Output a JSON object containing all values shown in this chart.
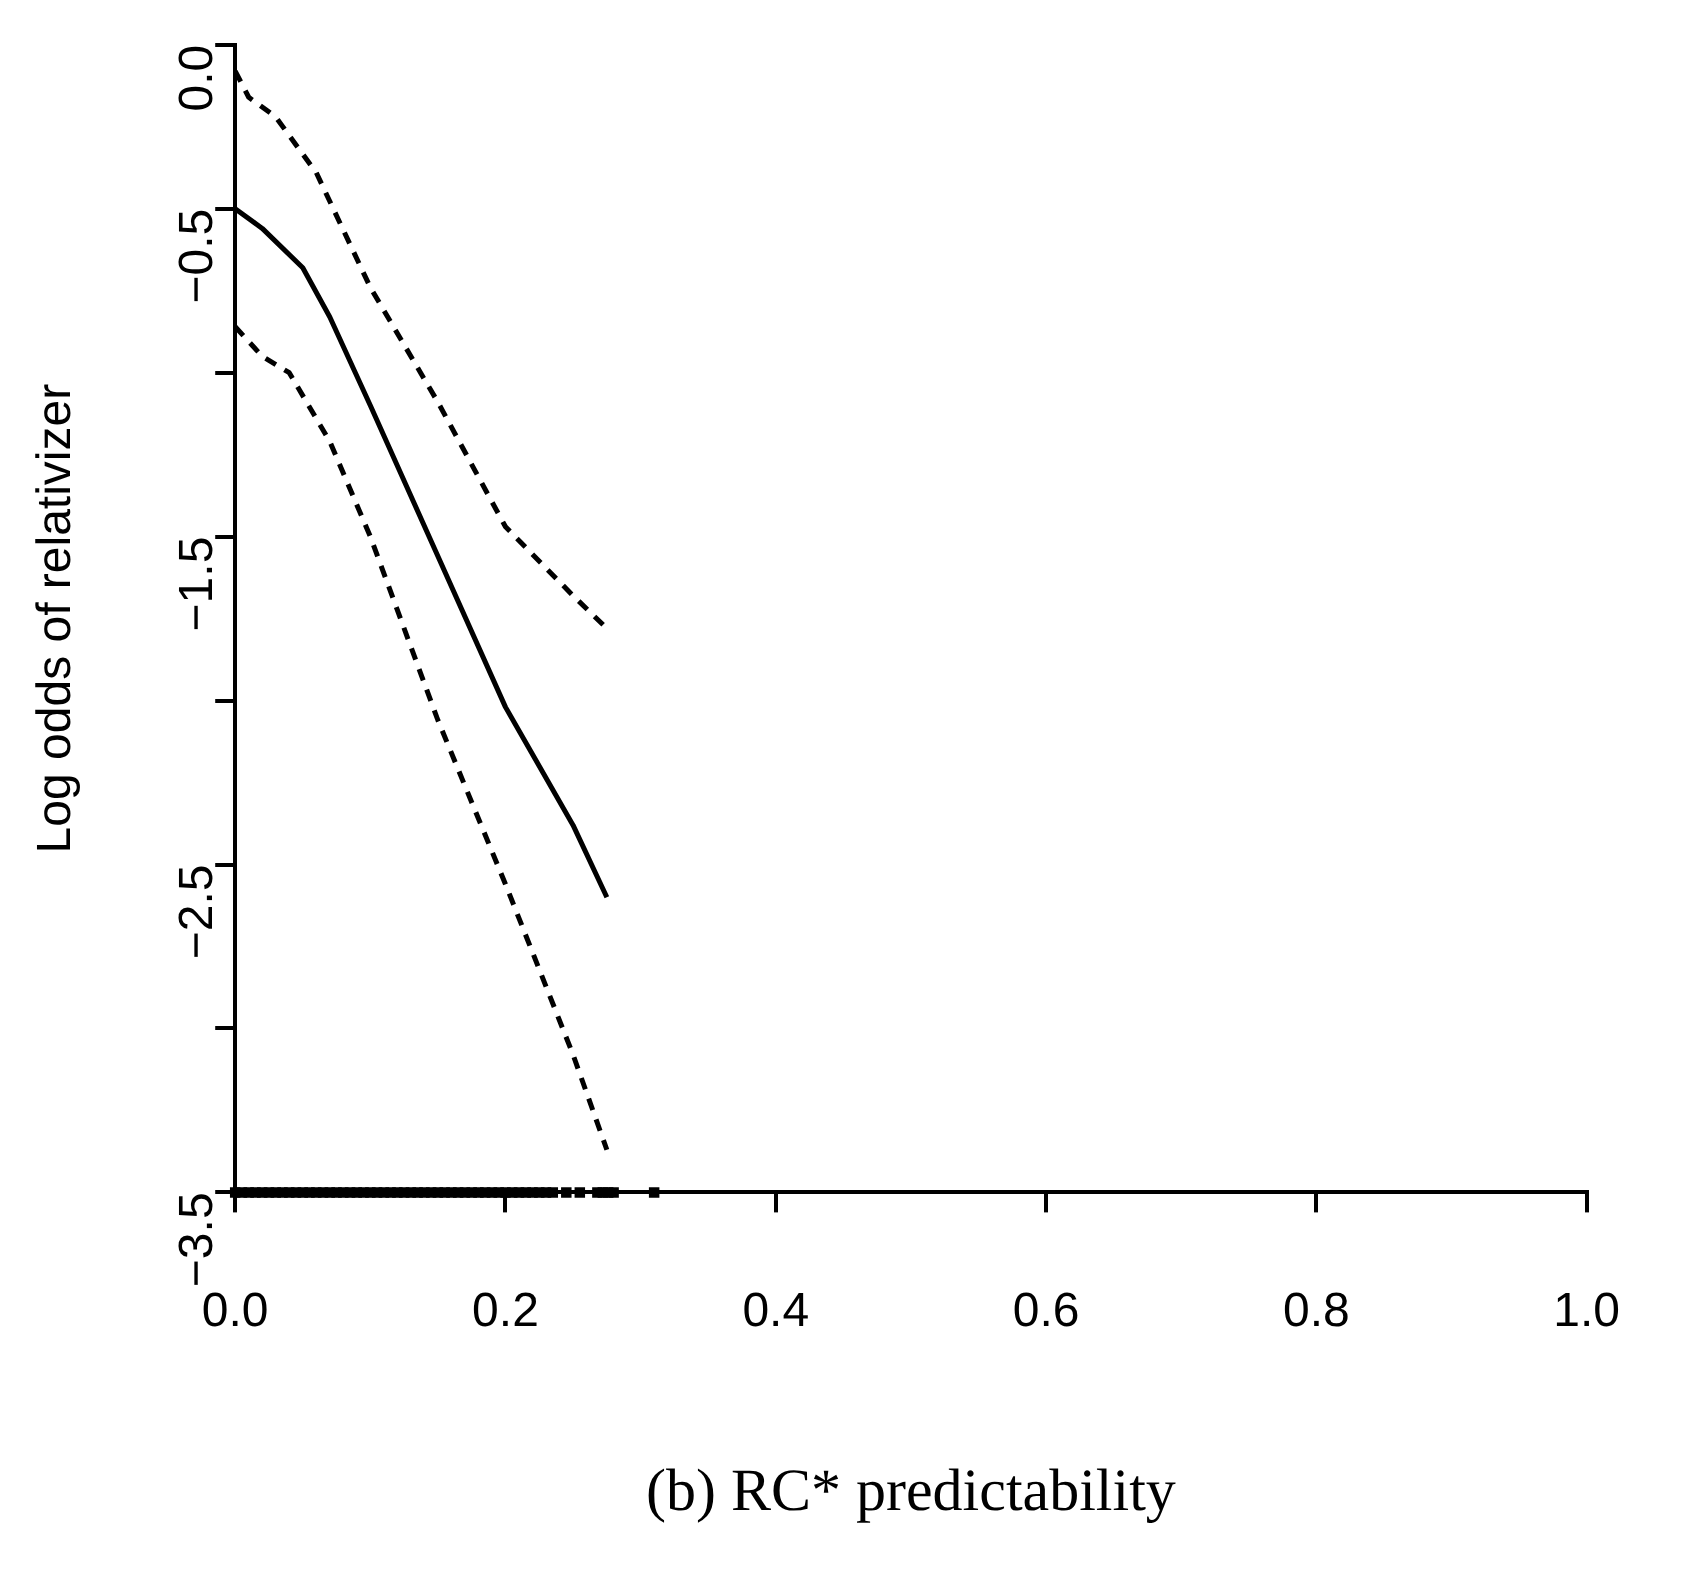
{
  "chart_data": {
    "type": "line",
    "xlabel": "(b) RC* predictability",
    "ylabel": "Log odds of relativizer",
    "xlim": [
      0,
      1
    ],
    "xticks": [
      {
        "value": 0,
        "label": "0.0"
      },
      0.2,
      0.4,
      0.6,
      0.8,
      {
        "value": 1,
        "label": "1.0"
      }
    ],
    "ylim": [
      -3.5,
      0
    ],
    "yticks": [
      {
        "value": -3.5,
        "label": "−3.5"
      },
      {
        "value": -3,
        "label": null
      },
      {
        "value": -2.5,
        "label": "−2.5"
      },
      {
        "value": -2,
        "label": null
      },
      {
        "value": -1.5,
        "label": "−1.5"
      },
      {
        "value": -1,
        "label": null
      },
      {
        "value": -0.5,
        "label": "−0.5"
      },
      {
        "value": 0,
        "label": "0.0"
      }
    ],
    "grid": false,
    "legend": false,
    "marker": "none",
    "series": [
      {
        "color": "#000000",
        "line_style": "solid",
        "x": [
          0,
          0.02,
          0.05,
          0.07,
          0.1,
          0.15,
          0.2,
          0.25,
          0.275
        ],
        "values": [
          -0.5,
          -0.56,
          -0.68,
          -0.83,
          -1.1,
          -1.56,
          -2.02,
          -2.38,
          -2.6
        ]
      },
      {
        "color": "#000000",
        "line_style": "dashed",
        "x": [
          0,
          0.01,
          0.03,
          0.06,
          0.1,
          0.15,
          0.2,
          0.25,
          0.275
        ],
        "values": [
          -0.08,
          -0.16,
          -0.22,
          -0.39,
          -0.74,
          -1.09,
          -1.47,
          -1.68,
          -1.78
        ]
      },
      {
        "color": "#000000",
        "line_style": "dashed",
        "x": [
          0,
          0.02,
          0.04,
          0.07,
          0.1,
          0.15,
          0.2,
          0.25,
          0.275
        ],
        "values": [
          -0.86,
          -0.95,
          -1.0,
          -1.21,
          -1.5,
          -2.06,
          -2.56,
          -3.08,
          -3.37
        ]
      },
      {
        "type": "scatter",
        "marker": "square",
        "color": "#000000",
        "x": [
          0,
          0.005,
          0.01,
          0.015,
          0.02,
          0.025,
          0.03,
          0.035,
          0.04,
          0.045,
          0.05,
          0.055,
          0.06,
          0.065,
          0.07,
          0.075,
          0.08,
          0.085,
          0.09,
          0.095,
          0.1,
          0.105,
          0.11,
          0.115,
          0.12,
          0.125,
          0.13,
          0.135,
          0.14,
          0.145,
          0.15,
          0.155,
          0.16,
          0.165,
          0.17,
          0.175,
          0.18,
          0.185,
          0.19,
          0.195,
          0.2,
          0.205,
          0.21,
          0.215,
          0.22,
          0.225,
          0.23,
          0.235,
          0.245,
          0.255,
          0.268,
          0.272,
          0.276,
          0.28,
          0.31
        ],
        "values": [
          -3.5,
          -3.5,
          -3.5,
          -3.5,
          -3.5,
          -3.5,
          -3.5,
          -3.5,
          -3.5,
          -3.5,
          -3.5,
          -3.5,
          -3.5,
          -3.5,
          -3.5,
          -3.5,
          -3.5,
          -3.5,
          -3.5,
          -3.5,
          -3.5,
          -3.5,
          -3.5,
          -3.5,
          -3.5,
          -3.5,
          -3.5,
          -3.5,
          -3.5,
          -3.5,
          -3.5,
          -3.5,
          -3.5,
          -3.5,
          -3.5,
          -3.5,
          -3.5,
          -3.5,
          -3.5,
          -3.5,
          -3.5,
          -3.5,
          -3.5,
          -3.5,
          -3.5,
          -3.5,
          -3.5,
          -3.5,
          -3.5,
          -3.5,
          -3.5,
          -3.5,
          -3.5,
          -3.5,
          -3.5
        ]
      }
    ]
  }
}
